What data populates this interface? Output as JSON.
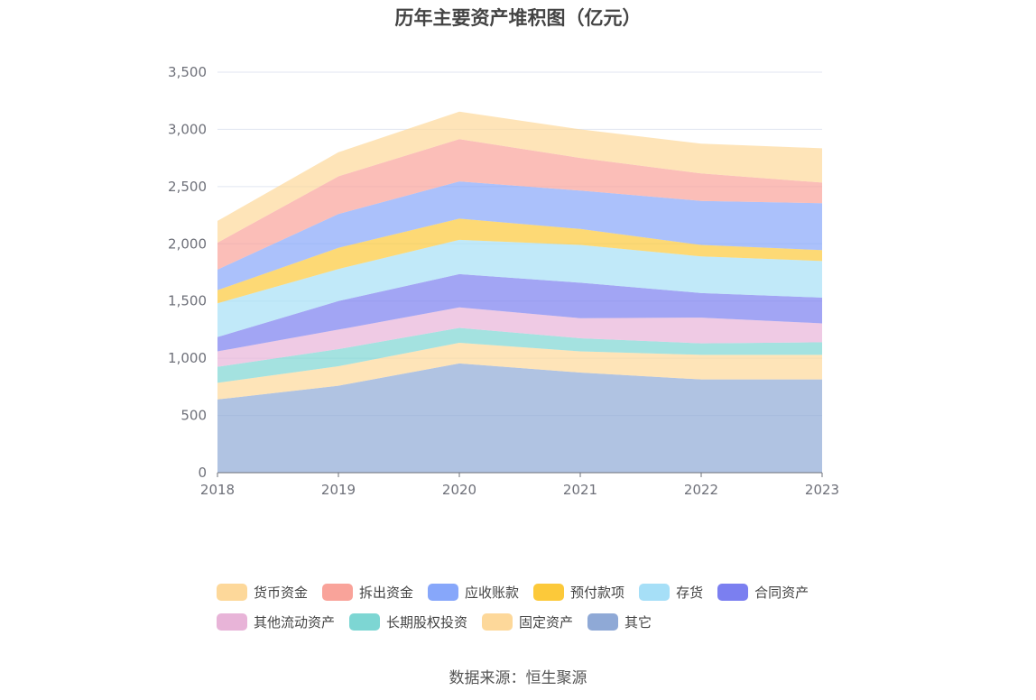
{
  "chart_data": {
    "type": "area",
    "stacked": true,
    "title": "历年主要资产堆积图（亿元）",
    "categories": [
      "2018",
      "2019",
      "2020",
      "2021",
      "2022",
      "2023"
    ],
    "ylim": [
      0,
      3500
    ],
    "yticks": [
      0,
      500,
      1000,
      1500,
      2000,
      2500,
      3000,
      3500
    ],
    "ytick_labels": [
      "0",
      "500",
      "1,000",
      "1,500",
      "2,000",
      "2,500",
      "3,000",
      "3,500"
    ],
    "grid": true,
    "legend_position": "bottom",
    "series": [
      {
        "name": "其它",
        "color": "#8fa9d6",
        "values": [
          640,
          760,
          955,
          875,
          815,
          815
        ]
      },
      {
        "name": "固定资产",
        "color": "#fdd89a",
        "values": [
          145,
          170,
          180,
          185,
          215,
          215
        ]
      },
      {
        "name": "长期股权投资",
        "color": "#7dd6d3",
        "values": [
          140,
          150,
          130,
          115,
          100,
          110
        ]
      },
      {
        "name": "其他流动资产",
        "color": "#e8b4d8",
        "values": [
          135,
          170,
          180,
          175,
          225,
          165
        ]
      },
      {
        "name": "合同资产",
        "color": "#7b7ff0",
        "values": [
          125,
          250,
          290,
          310,
          215,
          225
        ]
      },
      {
        "name": "存货",
        "color": "#a6dff7",
        "values": [
          295,
          280,
          300,
          330,
          320,
          320
        ]
      },
      {
        "name": "预付款项",
        "color": "#fcc93a",
        "values": [
          115,
          185,
          185,
          140,
          100,
          95
        ]
      },
      {
        "name": "应收账款",
        "color": "#87a7fa",
        "values": [
          180,
          295,
          325,
          335,
          385,
          410
        ]
      },
      {
        "name": "拆出资金",
        "color": "#f9a39a",
        "values": [
          235,
          330,
          370,
          285,
          240,
          180
        ]
      },
      {
        "name": "货币资金",
        "color": "#fdd89a",
        "values": [
          190,
          210,
          240,
          250,
          260,
          300
        ]
      }
    ]
  },
  "legend": {
    "row1": [
      {
        "label": "货币资金",
        "color": "#fdd89a"
      },
      {
        "label": "拆出资金",
        "color": "#f9a39a"
      },
      {
        "label": "应收账款",
        "color": "#87a7fa"
      },
      {
        "label": "预付款项",
        "color": "#fcc93a"
      },
      {
        "label": "存货",
        "color": "#a6dff7"
      },
      {
        "label": "合同资产",
        "color": "#7b7ff0"
      }
    ],
    "row2": [
      {
        "label": "其他流动资产",
        "color": "#e8b4d8"
      },
      {
        "label": "长期股权投资",
        "color": "#7dd6d3"
      },
      {
        "label": "固定资产",
        "color": "#fdd89a"
      },
      {
        "label": "其它",
        "color": "#8fa9d6"
      }
    ]
  },
  "source": "数据来源：恒生聚源"
}
